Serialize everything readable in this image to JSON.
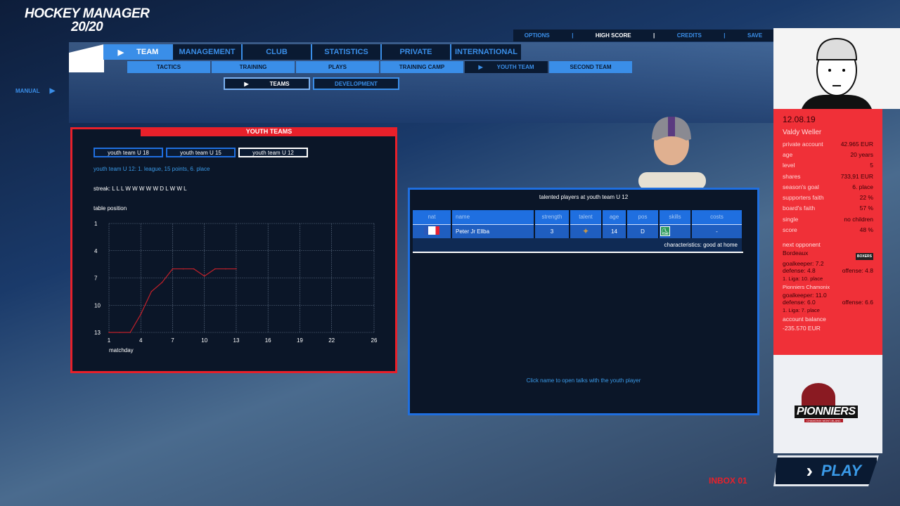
{
  "app": {
    "logo_line1": "HOCKEY MANAGER",
    "logo_line2": "20/20"
  },
  "topbar": {
    "items": [
      "OPTIONS",
      "HIGH SCORE",
      "CREDITS",
      "SAVE"
    ],
    "active": "HIGH SCORE"
  },
  "nav": {
    "tabs": [
      "TEAM",
      "MANAGEMENT",
      "CLUB",
      "STATISTICS",
      "PRIVATE",
      "INTERNATIONAL"
    ],
    "active_tab": "TEAM",
    "subtabs": [
      "TACTICS",
      "TRAINING",
      "PLAYS",
      "TRAINING CAMP",
      "YOUTH TEAM",
      "SECOND TEAM"
    ],
    "active_subtab": "YOUTH TEAM",
    "third": [
      "TEAMS",
      "DEVELOPMENT"
    ],
    "active_third": "TEAMS",
    "manual": "MANUAL"
  },
  "youth": {
    "title": "YOUTH TEAMS",
    "buttons": [
      "youth team U 18",
      "youth team U 15",
      "youth team U 12"
    ],
    "selected": "youth team U 12",
    "summary": "youth team U 12: 1. league,  15 points, 6. place",
    "streak": "streak: L L L W W W W W D L W W L",
    "chart_title": "table position"
  },
  "chart_data": {
    "type": "line",
    "title": "table position",
    "xlabel": "matchday",
    "ylabel": "",
    "x_ticks": [
      1,
      4,
      7,
      10,
      13,
      16,
      19,
      22,
      26
    ],
    "y_ticks": [
      1,
      4,
      7,
      10,
      13
    ],
    "xlim": [
      1,
      26
    ],
    "ylim": [
      13,
      1
    ],
    "y_inverted": true,
    "grid": true,
    "series": [
      {
        "color": "#c0202a",
        "x": [
          1,
          2,
          3,
          4,
          5,
          6,
          7,
          8,
          9,
          10,
          11,
          12,
          13
        ],
        "y": [
          13,
          13,
          13,
          11,
          8.5,
          7.5,
          6,
          6,
          6,
          6.8,
          6,
          6,
          6
        ]
      }
    ]
  },
  "players": {
    "title": "talented players at youth team U 12",
    "columns": [
      "nat",
      "name",
      "strength",
      "talent",
      "age",
      "pos",
      "skills",
      "costs"
    ],
    "rows": [
      {
        "nat": "France",
        "name": "Peter Jr Ellba",
        "strength": "3",
        "talent": "star-icon",
        "age": "14",
        "pos": "D",
        "skills": "skater-icon",
        "costs": "-"
      }
    ],
    "characteristics": "characteristics: good at home",
    "hint": "Click name to open talks with the youth player"
  },
  "profile": {
    "date": "12.08.19",
    "name": "Valdy Weller",
    "stats": [
      [
        "private account",
        "42.965 EUR"
      ],
      [
        "age",
        "20 years"
      ],
      [
        "level",
        "5"
      ],
      [
        "shares",
        "733,91 EUR"
      ],
      [
        "season's goal",
        "6. place"
      ],
      [
        "supporters faith",
        "22 %"
      ],
      [
        "board's faith",
        "57 %"
      ],
      [
        "single",
        "no children"
      ],
      [
        "score",
        "48 %"
      ]
    ],
    "next_label": "next opponent",
    "opp_name": "Bordeaux",
    "opp_gk": "goalkeeper: 7.2",
    "opp_def": "defense: 4.8",
    "opp_off": "offense: 4.8",
    "opp_liga": "1. Liga: 10. place",
    "opp_logo": "BOXERS",
    "own_name": "Pionniers Chamonix",
    "own_gk": "goalkeeper: 11.0",
    "own_def": "defense: 6.0",
    "own_off": "offense: 6.6",
    "own_liga": "1. Liga: 7. place",
    "balance_label": "account balance",
    "balance": "-235.570 EUR"
  },
  "club_logo": {
    "text": "PIONNIERS",
    "sub": "CHAMONIX MONT-BLANC"
  },
  "play": "PLAY",
  "inbox": "INBOX  01",
  "colors": {
    "accent": "#3a8ee8",
    "red": "#e8202a",
    "panel": "#0b1628"
  }
}
